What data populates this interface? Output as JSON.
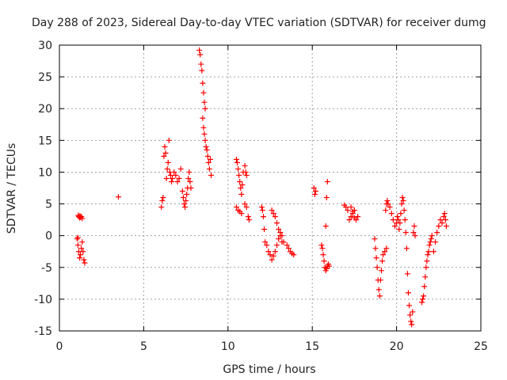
{
  "chart_data": {
    "type": "scatter",
    "title": "Day 288 of 2023, Sidereal Day-to-day VTEC variation (SDTVAR) for receiver dumg",
    "xlabel": "GPS time / hours",
    "ylabel": "SDTVAR / TECUs",
    "xlim": [
      0,
      25
    ],
    "ylim": [
      -15,
      30
    ],
    "xticks": [
      0,
      5,
      10,
      15,
      20,
      25
    ],
    "yticks": [
      -15,
      -10,
      -5,
      0,
      5,
      10,
      15,
      20,
      25,
      30
    ],
    "grid": true,
    "marker": "+",
    "color": "#ff0000",
    "series": [
      {
        "name": "SDTVAR",
        "x": [
          1.05,
          1.1,
          1.12,
          1.15,
          1.2,
          1.22,
          1.25,
          1.3,
          1.35,
          1.1,
          1.15,
          1.2,
          1.25,
          1.3,
          1.35,
          1.4,
          1.45,
          1.5,
          3.5,
          6.05,
          6.1,
          6.15,
          6.2,
          6.25,
          6.3,
          6.35,
          6.4,
          6.45,
          6.5,
          6.55,
          6.6,
          6.65,
          6.7,
          6.8,
          6.9,
          7.0,
          7.1,
          7.2,
          7.3,
          7.35,
          7.4,
          7.45,
          7.5,
          7.55,
          7.6,
          7.65,
          7.7,
          7.75,
          7.8,
          8.3,
          8.35,
          8.4,
          8.45,
          8.5,
          8.55,
          8.6,
          8.65,
          8.5,
          8.55,
          8.6,
          8.65,
          8.7,
          8.75,
          8.8,
          8.85,
          8.9,
          8.95,
          9.0,
          10.5,
          10.55,
          10.6,
          10.65,
          10.7,
          10.75,
          10.8,
          10.85,
          10.9,
          11.0,
          11.05,
          11.1,
          10.5,
          10.6,
          10.7,
          10.8,
          11.0,
          11.1,
          11.2,
          11.25,
          12.0,
          12.05,
          12.1,
          12.15,
          12.2,
          12.3,
          12.4,
          12.5,
          12.6,
          12.7,
          12.8,
          12.9,
          13.0,
          13.1,
          13.2,
          12.6,
          12.7,
          12.8,
          12.9,
          13.0,
          13.1,
          13.2,
          13.3,
          13.5,
          13.6,
          13.7,
          13.8,
          13.9,
          15.1,
          15.15,
          15.2,
          15.55,
          15.6,
          15.65,
          15.7,
          15.75,
          15.8,
          15.85,
          15.9,
          15.95,
          16.0,
          15.8,
          15.85,
          15.9,
          16.9,
          17.0,
          17.1,
          17.2,
          17.3,
          17.4,
          17.5,
          17.6,
          17.7,
          17.3,
          17.4,
          17.5,
          18.7,
          18.75,
          18.8,
          18.85,
          18.9,
          18.95,
          19.0,
          19.05,
          19.1,
          19.15,
          19.2,
          19.3,
          19.4,
          19.35,
          19.4,
          19.45,
          19.5,
          19.6,
          19.7,
          19.8,
          19.9,
          20.0,
          20.05,
          20.1,
          20.15,
          20.2,
          20.25,
          20.3,
          20.35,
          20.4,
          20.45,
          20.5,
          20.55,
          20.6,
          20.65,
          20.7,
          20.75,
          20.8,
          20.85,
          20.9,
          20.95,
          21.0,
          21.05,
          21.1,
          21.5,
          21.55,
          21.6,
          21.65,
          21.7,
          21.75,
          21.8,
          21.85,
          21.9,
          21.95,
          22.0,
          22.05,
          22.1,
          22.2,
          22.3,
          22.4,
          22.5,
          22.6,
          22.7,
          22.8,
          22.85,
          22.9,
          22.95
        ],
        "y": [
          -0.5,
          -0.3,
          3.2,
          3.0,
          2.8,
          3.1,
          2.9,
          3.0,
          2.7,
          -1.5,
          -2.5,
          -3.5,
          -3.0,
          -2.0,
          -1.0,
          -2.5,
          -3.8,
          -4.3,
          6.1,
          4.5,
          5.5,
          6.0,
          12.5,
          14.0,
          13.0,
          9.0,
          10.5,
          11.5,
          15.0,
          10.0,
          9.5,
          8.5,
          9.0,
          10.0,
          9.5,
          8.5,
          9.0,
          10.5,
          7.0,
          6.0,
          5.0,
          4.5,
          5.5,
          6.5,
          7.5,
          9.0,
          10.0,
          8.5,
          7.5,
          29.2,
          28.5,
          27.0,
          26.0,
          24.0,
          22.5,
          21.0,
          20.0,
          18.5,
          17.0,
          16.0,
          15.0,
          14.0,
          13.5,
          12.5,
          11.5,
          10.5,
          12.0,
          9.5,
          12.0,
          11.5,
          10.5,
          9.5,
          8.5,
          7.5,
          6.5,
          8.0,
          10.0,
          11.0,
          10.0,
          9.5,
          4.5,
          4.0,
          3.8,
          3.5,
          5.0,
          4.5,
          3.0,
          2.5,
          4.5,
          4.0,
          3.0,
          1.0,
          -1.0,
          -1.5,
          -2.5,
          -3.0,
          -3.8,
          -3.2,
          -2.5,
          -1.5,
          -0.5,
          0.0,
          -1.0,
          4.0,
          3.5,
          3.0,
          2.0,
          1.0,
          0.5,
          0.0,
          -1.0,
          -1.5,
          -2.0,
          -2.5,
          -2.8,
          -3.0,
          7.5,
          6.5,
          7.0,
          -1.5,
          -2.0,
          -3.0,
          -4.0,
          -5.0,
          -5.5,
          -5.2,
          -4.8,
          -4.5,
          -4.8,
          1.5,
          6.0,
          8.5,
          4.8,
          4.5,
          4.0,
          2.5,
          3.0,
          3.5,
          4.0,
          2.5,
          3.0,
          4.5,
          3.8,
          2.8,
          -0.5,
          -2.0,
          -3.5,
          -5.0,
          -7.0,
          -8.5,
          -9.5,
          -7.0,
          -5.5,
          -4.0,
          -3.0,
          -2.5,
          -2.0,
          4.0,
          5.0,
          5.5,
          5.0,
          4.5,
          3.5,
          2.5,
          1.5,
          2.0,
          3.0,
          2.5,
          1.0,
          2.0,
          3.5,
          5.0,
          6.0,
          5.5,
          4.0,
          2.5,
          0.5,
          -2.0,
          -6.0,
          -9.0,
          -11.0,
          -12.5,
          -13.5,
          -14.0,
          -12.0,
          0.5,
          1.5,
          0.0,
          -10.5,
          -10.0,
          -9.5,
          -8.0,
          -6.5,
          -5.0,
          -4.0,
          -3.0,
          -2.5,
          -1.5,
          -1.0,
          -0.5,
          0.0,
          -2.5,
          -1.0,
          0.5,
          1.5,
          2.5,
          2.0,
          3.0,
          3.5,
          2.5,
          1.5
        ]
      }
    ]
  }
}
